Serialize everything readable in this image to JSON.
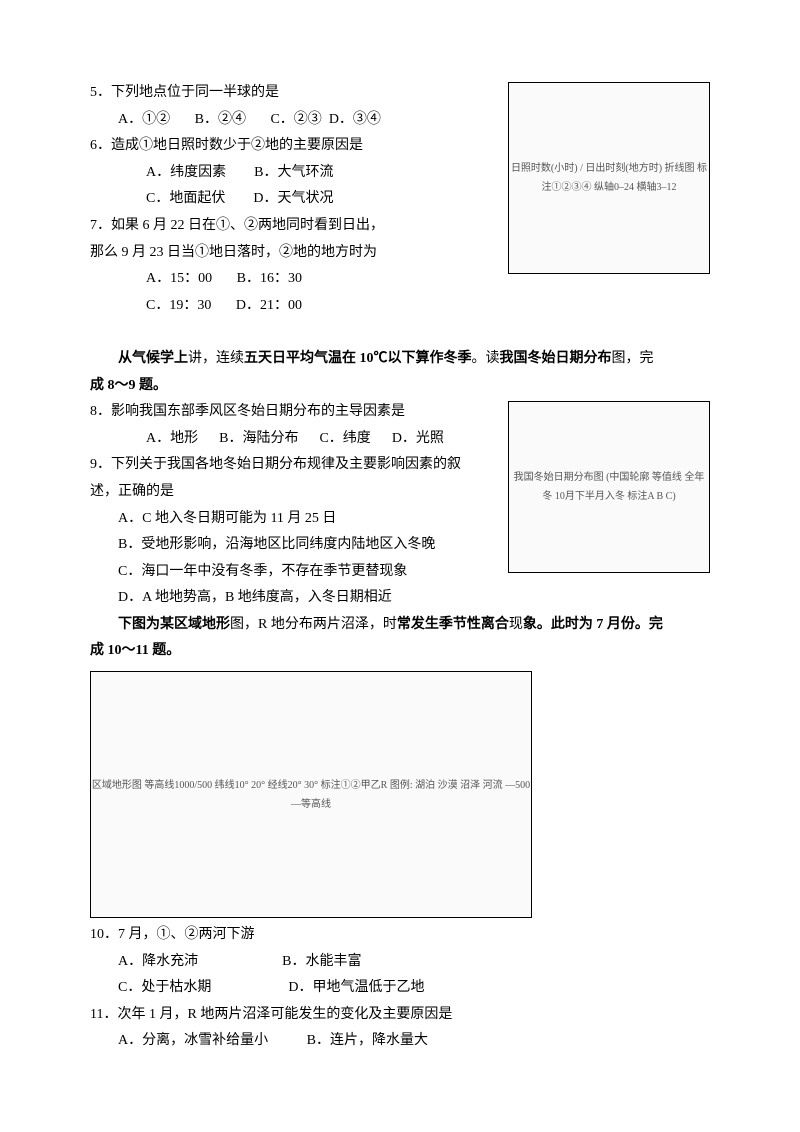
{
  "q5": {
    "stem": "5．下列地点位于同一半球的是",
    "optA": "A．①②",
    "optB": "B．②④",
    "optC": "C．②③",
    "optD": "D．③④"
  },
  "q6": {
    "stem": "6．造成①地日照时数少于②地的主要原因是",
    "optA": "A．纬度因素",
    "optB": "B．大气环流",
    "optC": "C．地面起伏",
    "optD": "D．天气状况"
  },
  "q7": {
    "stem1": "7．如果 6 月 22 日在①、②两地同时看到日出，",
    "stem2": "那么 9 月 23 日当①地日落时，②地的地方时为",
    "optA": "A．15：00",
    "optB": "B．16：30",
    "optC": "C．19：30",
    "optD": "D．21：00"
  },
  "chart1_label": "日照时数(小时) / 日出时刻(地方时) 折线图 标注①②③④ 纵轴0–24 横轴3–12",
  "passage89_a": "从气候学上",
  "passage89_b": "讲，连续",
  "passage89_c": "五天日平均气温在 10℃以下算作冬季",
  "passage89_d": "。读",
  "passage89_e": "我国冬始日期分布",
  "passage89_f": "图，完",
  "passage89_g": "成 8～9 题。",
  "q8": {
    "stem": "8．影响我国东部季风区冬始日期分布的主导因素是",
    "optA": "A．地形",
    "optB": "B．海陆分布",
    "optC": "C．纬度",
    "optD": "D．光照"
  },
  "q9": {
    "stem1": "9．下列关于我国各地冬始日期分布规律及主要影响因素的叙",
    "stem2": "述，正确的是",
    "optA": "A．C 地入冬日期可能为 11 月 25 日",
    "optB": "B．受地形影响，沿海地区比同纬度内陆地区入冬晚",
    "optC": "C．海口一年中没有冬季，不存在季节更替现象",
    "optD": "D．A 地地势高，B 地纬度高，入冬日期相近"
  },
  "map1_label": "我国冬始日期分布图 (中国轮廓 等值线 全年冬 10月下半月入冬 标注A B C)",
  "passage1011_a": "下图为",
  "passage1011_b": "某区域地形",
  "passage1011_c": "图，R 地分布两片沼",
  "passage1011_d": "泽，时",
  "passage1011_e": "常发生季节",
  "passage1011_f": "性离合",
  "passage1011_g": "现",
  "passage1011_h": "象。",
  "passage1011_i": "此时为 7 月",
  "passage1011_j": "份。完",
  "passage1011_k": "成 10～11 题。",
  "map2_label": "区域地形图 等高线1000/500 纬线10° 20° 经线20° 30° 标注①②甲乙R 图例: 湖泊 沙漠 沼泽 河流 —500—等高线",
  "q10": {
    "stem": "10．7 月，①、②两河下游",
    "optA": "A．降水充沛",
    "optB": "B．水能丰富",
    "optC": "C．处于枯水期",
    "optD": "D．甲地气温低于乙地"
  },
  "q11": {
    "stem": "11．次年 1 月，R 地两片沼泽可能发生的变化及主要原因是",
    "optA": "A．分离，冰雪补给量小",
    "optB": "B．连片，降水量大"
  }
}
